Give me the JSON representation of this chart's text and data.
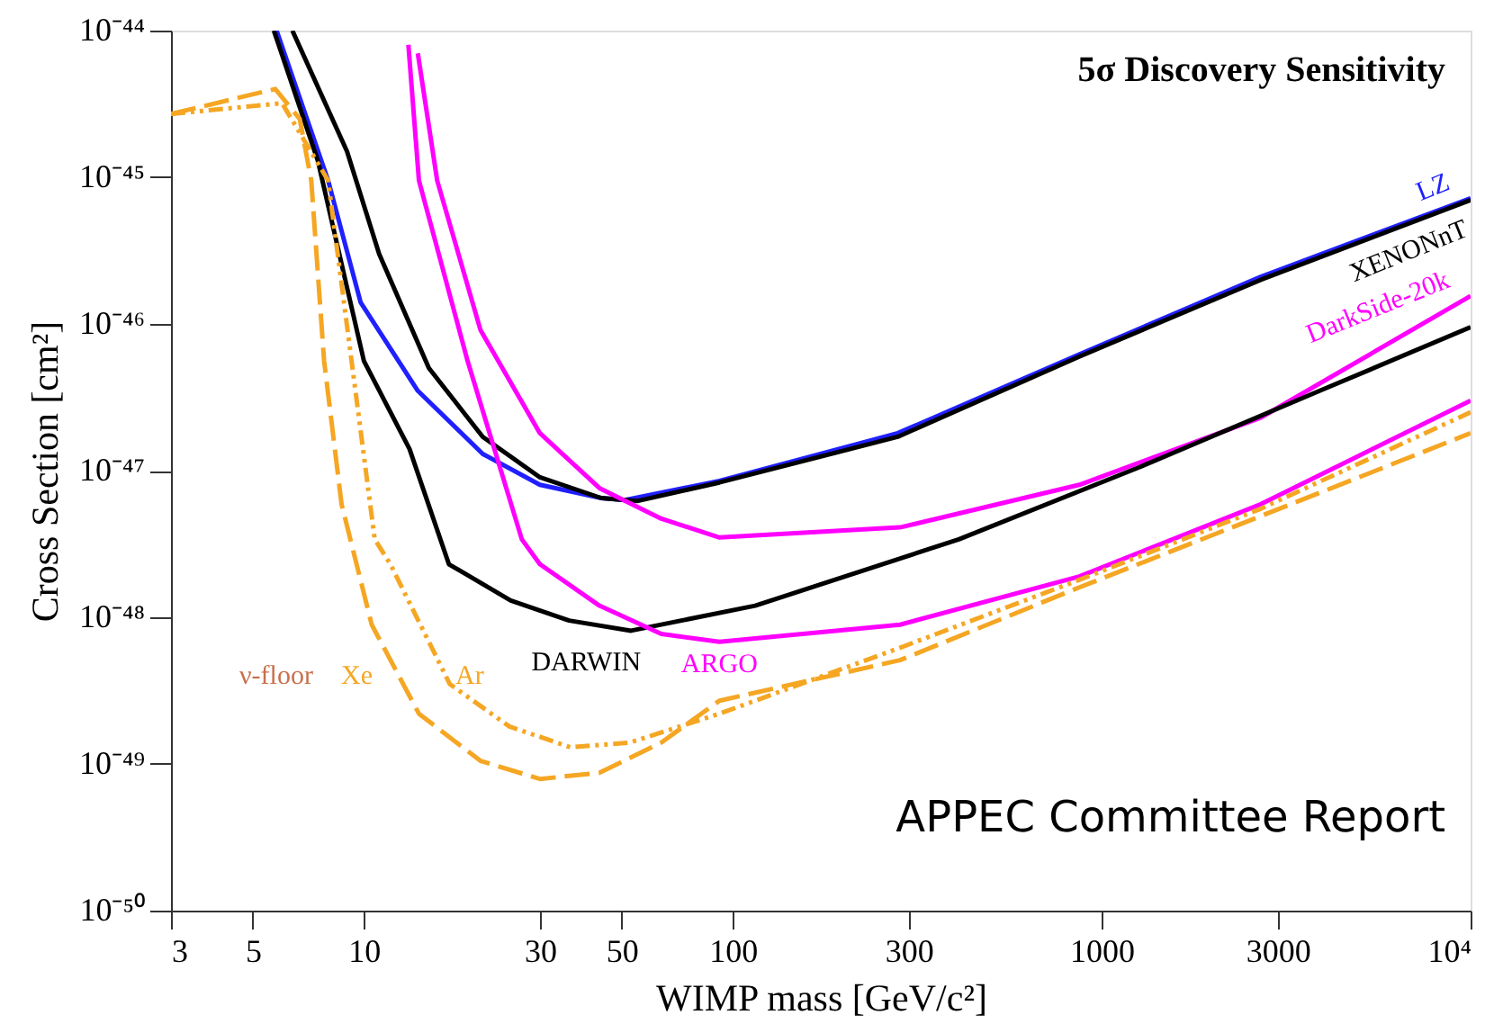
{
  "chart_data": {
    "type": "line",
    "title": "5σ Discovery Sensitivity",
    "xlabel": "WIMP mass [GeV/c²]",
    "ylabel": "Cross Section [cm²]",
    "log": "xy",
    "grid": false,
    "marker": "none",
    "xlim": [
      3,
      10000
    ],
    "xticks": [
      3,
      5,
      10,
      30,
      50,
      100,
      300,
      {
        "value": 1000,
        "label": "1000"
      },
      {
        "value": 3000,
        "label": "3000"
      },
      {
        "value": 10000,
        "label": "10⁴"
      }
    ],
    "ylim": [
      1e-50,
      1e-44
    ],
    "yticks": [
      {
        "value": 1e-50,
        "label": "10⁻⁵⁰"
      },
      {
        "value": 1e-49,
        "label": "10⁻⁴⁹"
      },
      {
        "value": 1e-48,
        "label": "10⁻⁴⁸"
      },
      {
        "value": 1e-47,
        "label": "10⁻⁴⁷"
      },
      {
        "value": 1e-46,
        "label": "10⁻⁴⁶"
      },
      {
        "value": 1e-45,
        "label": "10⁻⁴⁵"
      },
      {
        "value": 1e-44,
        "label": "10⁻⁴⁴"
      }
    ],
    "annotations": [
      "ν-floor",
      "APPEC Committee Report"
    ],
    "series": [
      {
        "name": "LZ",
        "color": "#2020ff",
        "line_style": "solid",
        "x": [
          5.8,
          8,
          9.8,
          14,
          21,
          30,
          44,
          51,
          92,
          280,
          870,
          2700,
          10000
        ],
        "values": [
          1e-44,
          9.5e-46,
          1.4e-46,
          3.5e-47,
          1.3e-47,
          8e-48,
          6.5e-48,
          6.3e-48,
          8.5e-48,
          1.8e-47,
          6.2e-47,
          2.1e-46,
          7.2e-46
        ]
      },
      {
        "name": "XENONnT",
        "color": "#000000",
        "line_style": "solid",
        "x": [
          6.4,
          9,
          11,
          15,
          21,
          30,
          44,
          55,
          92,
          280,
          870,
          2700,
          10000
        ],
        "values": [
          1e-44,
          1.5e-45,
          3e-46,
          5e-47,
          1.7e-47,
          9e-48,
          6.5e-48,
          6.2e-48,
          8.3e-48,
          1.7e-47,
          6e-47,
          2e-46,
          7e-46
        ]
      },
      {
        "name": "DarkSide-20k",
        "color": "#ff00ff",
        "line_style": "solid",
        "x": [
          14,
          15.8,
          20.7,
          30,
          43.5,
          64,
          92,
          284,
          870,
          2700,
          10000
        ],
        "values": [
          7e-45,
          9.5e-46,
          9.1e-47,
          1.8e-47,
          7.6e-48,
          4.7e-48,
          3.5e-48,
          4.1e-48,
          8e-48,
          2.3e-47,
          1.55e-46
        ]
      },
      {
        "name": "DARWIN",
        "color": "#000000",
        "line_style": "solid",
        "x": [
          5.7,
          7.5,
          10,
          13.3,
          17,
          25,
          36,
          53,
          115,
          410,
          1260,
          3900,
          10000
        ],
        "values": [
          1e-44,
          1.3e-45,
          5.6e-47,
          1.4e-47,
          2.3e-48,
          1.3e-48,
          9.5e-49,
          8.1e-49,
          1.2e-48,
          3.4e-48,
          1.05e-47,
          3.5e-47,
          9.5e-47
        ]
      },
      {
        "name": "ARGO",
        "color": "#ff00ff",
        "line_style": "solid",
        "x": [
          13.2,
          14.1,
          19.1,
          26.8,
          30,
          43.5,
          64,
          92,
          284,
          870,
          2700,
          10000
        ],
        "values": [
          8e-45,
          9.5e-46,
          5.6e-47,
          3.4e-48,
          2.3e-48,
          1.2e-48,
          7.7e-49,
          6.8e-49,
          8.9e-49,
          1.9e-48,
          5.9e-48,
          3e-47
        ]
      },
      {
        "name": "Xe",
        "color": "#f5a623",
        "line_style": "dashed",
        "x": [
          3,
          5.75,
          6.7,
          7.2,
          7.8,
          8.7,
          10.5,
          14.1,
          20.7,
          30,
          43.5,
          64,
          92,
          284,
          870,
          2700,
          10000
        ],
        "values": [
          2.7e-45,
          4e-45,
          2.5e-45,
          9.5e-46,
          5.6e-47,
          5.9e-48,
          8.9e-49,
          2.2e-49,
          1.05e-49,
          7.9e-50,
          8.7e-50,
          1.4e-49,
          2.7e-49,
          5.1e-49,
          1.6e-48,
          4.9e-48,
          1.8e-47
        ]
      },
      {
        "name": "Ar",
        "color": "#f5a623",
        "line_style": "dotted",
        "x": [
          3,
          6,
          8,
          10.7,
          11.8,
          17.1,
          24.8,
          36.3,
          52.6,
          92,
          284,
          870,
          2700,
          10000
        ],
        "values": [
          2.7e-45,
          3.2e-45,
          9.5e-46,
          3.4e-48,
          2.3e-48,
          3.5e-49,
          1.8e-49,
          1.3e-49,
          1.4e-49,
          2.2e-49,
          6.2e-49,
          1.8e-48,
          5.5e-48,
          2.5e-47
        ]
      }
    ]
  }
}
